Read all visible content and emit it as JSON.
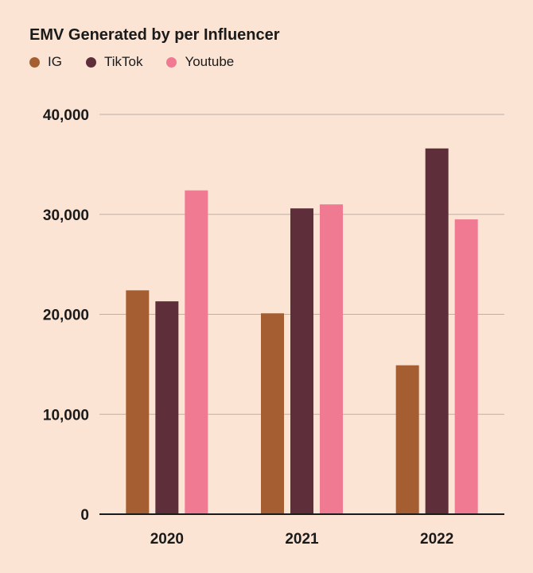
{
  "chart_data": {
    "type": "bar",
    "title": "EMV Generated by per Influencer",
    "categories": [
      "2020",
      "2021",
      "2022"
    ],
    "series": [
      {
        "name": "IG",
        "color": "#a45e32",
        "values": [
          22400,
          20100,
          14900
        ]
      },
      {
        "name": "TikTok",
        "color": "#5e2f3a",
        "values": [
          21300,
          30600,
          36600
        ]
      },
      {
        "name": "Youtube",
        "color": "#f07a92",
        "values": [
          32400,
          31000,
          29500
        ]
      }
    ],
    "ylim": [
      0,
      40000
    ],
    "yticks": [
      0,
      10000,
      20000,
      30000,
      40000
    ],
    "ytick_labels": [
      "0",
      "10,000",
      "20,000",
      "30,000",
      "40,000"
    ],
    "xlabel": "",
    "ylabel": "",
    "grid": true,
    "legend_position": "top-left"
  },
  "colors": {
    "background": "#fce4d4",
    "gridline": "#b9b1ab",
    "axis": "#1a1a1a"
  }
}
